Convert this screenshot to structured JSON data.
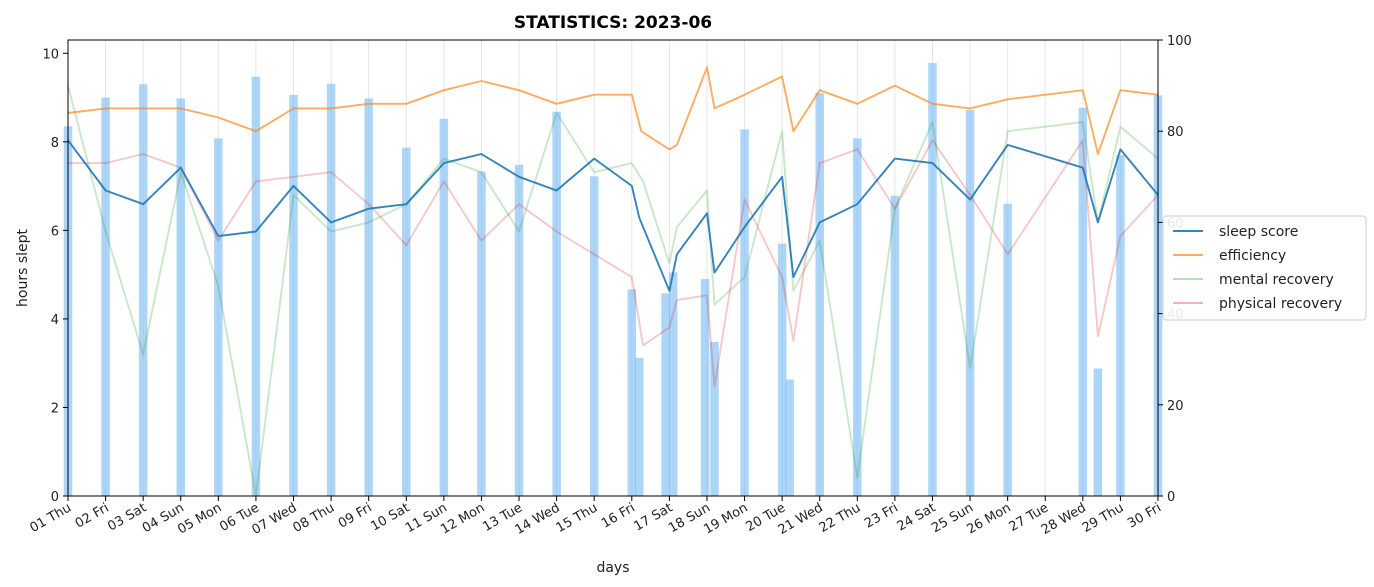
{
  "chart_data": {
    "type": "bar+line",
    "title": "STATISTICS: 2023-06",
    "xlabel": "days",
    "ylabel": "hours slept",
    "ylim": [
      0,
      10.3
    ],
    "y2lim": [
      0,
      100
    ],
    "yticks": [
      0,
      2,
      4,
      6,
      8,
      10
    ],
    "y2ticks": [
      0,
      20,
      40,
      60,
      80,
      100
    ],
    "xlim": [
      1,
      30
    ],
    "grid": "vertical",
    "legend_position": "right",
    "categories": [
      "01 Thu",
      "02 Fri",
      "03 Sat",
      "04 Sun",
      "05 Mon",
      "06 Tue",
      "07 Wed",
      "08 Thu",
      "09 Fri",
      "10 Sat",
      "11 Sun",
      "12 Mon",
      "13 Tue",
      "14 Wed",
      "15 Thu",
      "16 Fri",
      "17 Sat",
      "18 Sun",
      "19 Mon",
      "20 Tue",
      "21 Wed",
      "22 Thu",
      "23 Fri",
      "24 Sat",
      "25 Sun",
      "26 Mon",
      "27 Tue",
      "28 Wed",
      "29 Thu",
      "30 Fri"
    ],
    "colors": {
      "bars": "#7fbff5",
      "sleep_score": "#1f77b4",
      "efficiency": "#ff7f0e",
      "mental_recovery": "#2ca02c",
      "physical_recovery": "#d62728"
    },
    "bars": [
      {
        "x": 1.0,
        "value": 8.35
      },
      {
        "x": 2.0,
        "value": 9.0
      },
      {
        "x": 3.0,
        "value": 9.3
      },
      {
        "x": 4.0,
        "value": 8.98
      },
      {
        "x": 5.0,
        "value": 8.08
      },
      {
        "x": 6.0,
        "value": 9.47
      },
      {
        "x": 7.0,
        "value": 9.06
      },
      {
        "x": 8.0,
        "value": 9.31
      },
      {
        "x": 9.0,
        "value": 8.98
      },
      {
        "x": 10.0,
        "value": 7.87
      },
      {
        "x": 11.0,
        "value": 8.52
      },
      {
        "x": 12.0,
        "value": 7.33
      },
      {
        "x": 13.0,
        "value": 7.48
      },
      {
        "x": 14.0,
        "value": 8.68
      },
      {
        "x": 15.0,
        "value": 7.22
      },
      {
        "x": 16.0,
        "value": 4.67
      },
      {
        "x": 16.2,
        "value": 3.12
      },
      {
        "x": 16.9,
        "value": 4.58
      },
      {
        "x": 17.1,
        "value": 5.05
      },
      {
        "x": 17.95,
        "value": 4.9
      },
      {
        "x": 18.2,
        "value": 3.48
      },
      {
        "x": 19.0,
        "value": 8.28
      },
      {
        "x": 20.0,
        "value": 5.7
      },
      {
        "x": 20.2,
        "value": 2.63
      },
      {
        "x": 21.0,
        "value": 9.1
      },
      {
        "x": 22.0,
        "value": 8.08
      },
      {
        "x": 23.0,
        "value": 6.78
      },
      {
        "x": 24.0,
        "value": 9.78
      },
      {
        "x": 25.0,
        "value": 8.72
      },
      {
        "x": 26.0,
        "value": 6.6
      },
      {
        "x": 28.0,
        "value": 8.77
      },
      {
        "x": 28.4,
        "value": 2.88
      },
      {
        "x": 29.0,
        "value": 7.7
      },
      {
        "x": 30.0,
        "value": 9.05
      }
    ],
    "series": [
      {
        "name": "sleep score",
        "key": "sleep_score",
        "opacity": 0.9,
        "points": [
          [
            1,
            78
          ],
          [
            2,
            67
          ],
          [
            3,
            64
          ],
          [
            4,
            72
          ],
          [
            5,
            57
          ],
          [
            6,
            58
          ],
          [
            7,
            68
          ],
          [
            8,
            60
          ],
          [
            9,
            63
          ],
          [
            10,
            64
          ],
          [
            11,
            73
          ],
          [
            12,
            75
          ],
          [
            13,
            70
          ],
          [
            14,
            67
          ],
          [
            15,
            74
          ],
          [
            16,
            68
          ],
          [
            16.2,
            61
          ],
          [
            17,
            45
          ],
          [
            17.2,
            53
          ],
          [
            18,
            62
          ],
          [
            18.2,
            49
          ],
          [
            19,
            59
          ],
          [
            20,
            70
          ],
          [
            20.3,
            48
          ],
          [
            21,
            60
          ],
          [
            22,
            64
          ],
          [
            23,
            74
          ],
          [
            24,
            73
          ],
          [
            25,
            65
          ],
          [
            26,
            77
          ],
          [
            28,
            72
          ],
          [
            28.4,
            60
          ],
          [
            29,
            76
          ],
          [
            30,
            66
          ]
        ]
      },
      {
        "name": "efficiency",
        "key": "efficiency",
        "opacity": 0.65,
        "points": [
          [
            1,
            84
          ],
          [
            2,
            85
          ],
          [
            3,
            85
          ],
          [
            4,
            85
          ],
          [
            5,
            83
          ],
          [
            6,
            80
          ],
          [
            7,
            85
          ],
          [
            8,
            85
          ],
          [
            9,
            86
          ],
          [
            10,
            86
          ],
          [
            11,
            89
          ],
          [
            12,
            91
          ],
          [
            13,
            89
          ],
          [
            14,
            86
          ],
          [
            15,
            88
          ],
          [
            16,
            88
          ],
          [
            16.25,
            80
          ],
          [
            17,
            76
          ],
          [
            17.2,
            77
          ],
          [
            18,
            94
          ],
          [
            18.2,
            85
          ],
          [
            19,
            88
          ],
          [
            20,
            92
          ],
          [
            20.3,
            80
          ],
          [
            21,
            89
          ],
          [
            22,
            86
          ],
          [
            23,
            90
          ],
          [
            24,
            86
          ],
          [
            25,
            85
          ],
          [
            26,
            87
          ],
          [
            28,
            89
          ],
          [
            28.4,
            75
          ],
          [
            29,
            89
          ],
          [
            30,
            88
          ]
        ]
      },
      {
        "name": "mental recovery",
        "key": "mental_recovery",
        "opacity": 0.25,
        "points": [
          [
            1,
            90
          ],
          [
            2,
            58
          ],
          [
            3,
            31
          ],
          [
            4,
            71
          ],
          [
            5,
            46
          ],
          [
            6,
            0
          ],
          [
            7,
            66
          ],
          [
            8,
            58
          ],
          [
            9,
            60
          ],
          [
            10,
            64
          ],
          [
            11,
            74
          ],
          [
            12,
            71
          ],
          [
            13,
            58
          ],
          [
            14,
            84
          ],
          [
            15,
            71
          ],
          [
            16,
            73
          ],
          [
            16.3,
            69
          ],
          [
            17,
            51
          ],
          [
            17.2,
            59
          ],
          [
            18,
            67
          ],
          [
            18.2,
            42
          ],
          [
            19,
            48
          ],
          [
            20,
            80
          ],
          [
            20.3,
            45
          ],
          [
            21,
            56
          ],
          [
            22,
            4
          ],
          [
            23,
            63
          ],
          [
            24,
            82
          ],
          [
            25,
            28
          ],
          [
            26,
            80
          ],
          [
            28,
            82
          ],
          [
            28.4,
            60
          ],
          [
            29,
            81
          ],
          [
            30,
            74
          ]
        ]
      },
      {
        "name": "physical recovery",
        "key": "physical_recovery",
        "opacity": 0.25,
        "points": [
          [
            1,
            73
          ],
          [
            2,
            73
          ],
          [
            3,
            75
          ],
          [
            4,
            72
          ],
          [
            5,
            56
          ],
          [
            6,
            69
          ],
          [
            7,
            70
          ],
          [
            8,
            71
          ],
          [
            9,
            64
          ],
          [
            10,
            55
          ],
          [
            11,
            69
          ],
          [
            12,
            56
          ],
          [
            13,
            64
          ],
          [
            14,
            58
          ],
          [
            15,
            53
          ],
          [
            16,
            48
          ],
          [
            16.3,
            33
          ],
          [
            17,
            37
          ],
          [
            17.2,
            43
          ],
          [
            18,
            44
          ],
          [
            18.2,
            24
          ],
          [
            19,
            65
          ],
          [
            20,
            48
          ],
          [
            20.3,
            34
          ],
          [
            21,
            73
          ],
          [
            22,
            76
          ],
          [
            23,
            63
          ],
          [
            24,
            78
          ],
          [
            25,
            66
          ],
          [
            26,
            53
          ],
          [
            28,
            78
          ],
          [
            28.4,
            35
          ],
          [
            29,
            57
          ],
          [
            30,
            66
          ]
        ]
      }
    ]
  }
}
